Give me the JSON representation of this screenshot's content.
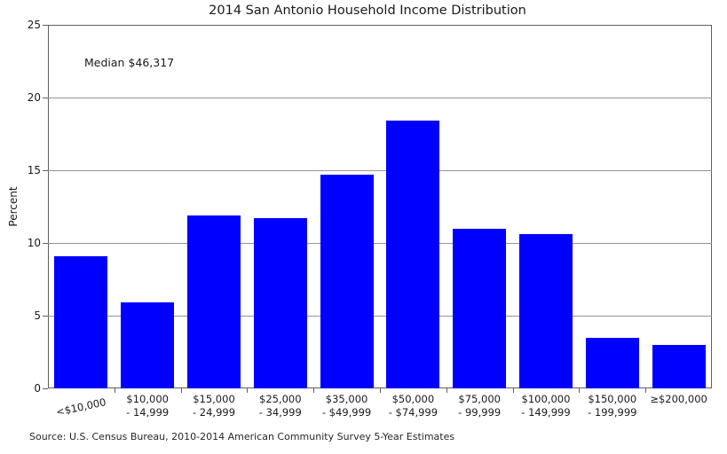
{
  "chart_data": {
    "type": "bar",
    "title": "2014 San Antonio Household Income Distribution",
    "xlabel": "",
    "ylabel": "Percent",
    "ylim": [
      0,
      25
    ],
    "yticks": [
      0,
      5,
      10,
      15,
      20,
      25
    ],
    "grid": true,
    "legend": "none",
    "bar_color": "#0000ff",
    "categories": [
      "<$10,000",
      "$10,000\n- 14,999",
      "$15,000\n- 24,999",
      "$25,000\n- 34,999",
      "$35,000\n- $49,999",
      "$50,000\n- $74,999",
      "$75,000\n- 99,999",
      "$100,000\n- 149,999",
      "$150,000\n- 199,999",
      "≥$200,000"
    ],
    "values": [
      9.1,
      5.9,
      11.9,
      11.7,
      14.7,
      18.4,
      11.0,
      10.6,
      3.5,
      3.0
    ],
    "annotation": "Median $46,317",
    "source_note": "Source: U.S. Census Bureau, 2010-2014 American Community Survey 5-Year Estimates"
  }
}
